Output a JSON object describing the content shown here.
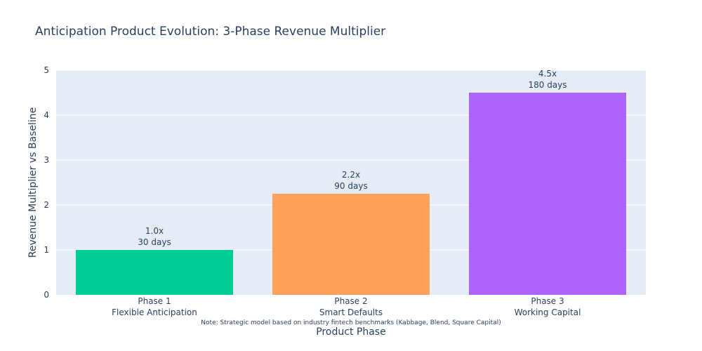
{
  "chart_data": {
    "type": "bar",
    "title": "Anticipation Product Evolution: 3-Phase Revenue Multiplier",
    "xlabel": "Product Phase",
    "ylabel": "Revenue Multiplier vs Baseline",
    "ylim": [
      0,
      5
    ],
    "yticks": [
      "0",
      "1",
      "2",
      "3",
      "4",
      "5"
    ],
    "categories": [
      {
        "line1": "Phase 1",
        "line2": "Flexible Anticipation"
      },
      {
        "line1": "Phase 2",
        "line2": "Smart Defaults"
      },
      {
        "line1": "Phase 3",
        "line2": "Working Capital"
      }
    ],
    "values": [
      1.0,
      2.25,
      4.5
    ],
    "data_labels": [
      {
        "line1": "1.0x",
        "line2": "30 days"
      },
      {
        "line1": "2.2x",
        "line2": "90 days"
      },
      {
        "line1": "4.5x",
        "line2": "180 days"
      }
    ],
    "colors": [
      "#00cc96",
      "#ffa15a",
      "#ab63fa"
    ],
    "grid": true,
    "note": "Note: Strategic model based on industry fintech benchmarks (Kabbage, Blend, Square Capital)",
    "background": "#e5ecf6"
  }
}
